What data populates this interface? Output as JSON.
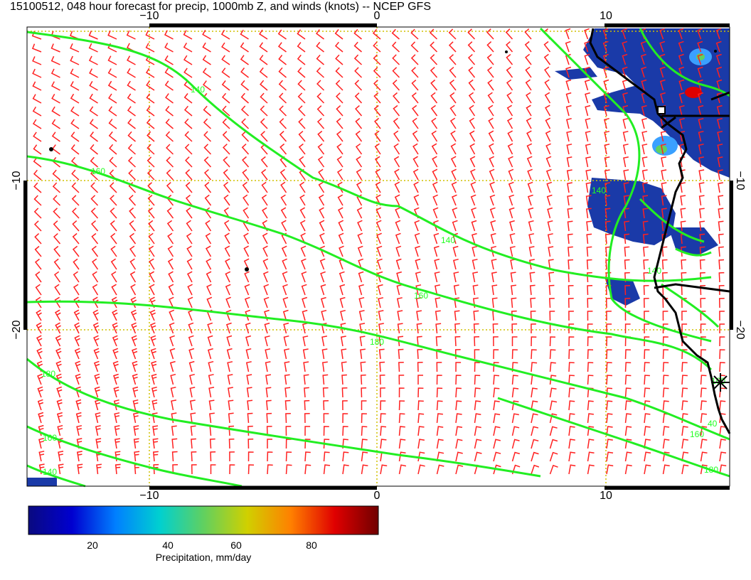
{
  "title": "15100512, 048 hour forecast for precip, 1000mb Z, and winds (knots) -- NCEP GFS",
  "axes": {
    "x_ticks_top": [
      "−10",
      "0",
      "10"
    ],
    "x_ticks_bottom": [
      "−10",
      "0",
      "10"
    ],
    "y_ticks_left": [
      "−10",
      "−20"
    ],
    "y_ticks_right": [
      "−10",
      "−20"
    ]
  },
  "colorbar": {
    "label": "Precipitation, mm/day",
    "ticks": [
      "20",
      "40",
      "60",
      "80"
    ],
    "colors": [
      "#0a0a80",
      "#0000d0",
      "#0080ff",
      "#00d0d0",
      "#60d060",
      "#d0d000",
      "#ff8000",
      "#e00000",
      "#700000"
    ]
  },
  "contour_labels": [
    "140",
    "160",
    "140",
    "160",
    "180",
    "180",
    "160",
    "140",
    "140",
    "160",
    "180",
    "160",
    "140",
    "40"
  ],
  "layers": {
    "contour_color": "#22ee22",
    "wind_barb_color": "#ff2020",
    "precip_color": "#1a3aa8",
    "grid_color": "#d0c000",
    "coast_color": "#000000"
  }
}
